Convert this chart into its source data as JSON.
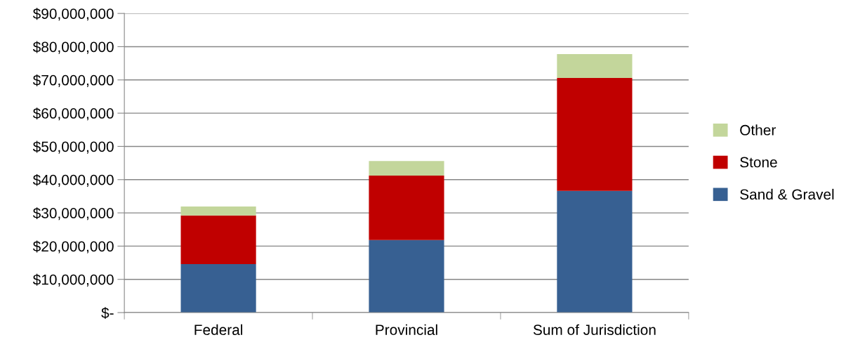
{
  "chart_data": {
    "type": "bar",
    "stacked": true,
    "categories": [
      "Federal",
      "Provincial",
      "Sum of Jurisdiction"
    ],
    "series": [
      {
        "name": "Sand & Gravel",
        "color": "#376092",
        "values": [
          14600000,
          21800000,
          36600000
        ]
      },
      {
        "name": "Stone",
        "color": "#c00000",
        "values": [
          14600000,
          19400000,
          34000000
        ]
      },
      {
        "name": "Other",
        "color": "#c3d69b",
        "values": [
          2700000,
          4400000,
          7200000
        ]
      }
    ],
    "ylim": [
      0,
      90000000
    ],
    "yticks": [
      {
        "value": 0,
        "label": "$-"
      },
      {
        "value": 10000000,
        "label": "$10,000,000"
      },
      {
        "value": 20000000,
        "label": "$20,000,000"
      },
      {
        "value": 30000000,
        "label": "$30,000,000"
      },
      {
        "value": 40000000,
        "label": "$40,000,000"
      },
      {
        "value": 50000000,
        "label": "$50,000,000"
      },
      {
        "value": 60000000,
        "label": "$60,000,000"
      },
      {
        "value": 70000000,
        "label": "$70,000,000"
      },
      {
        "value": 80000000,
        "label": "$80,000,000"
      },
      {
        "value": 90000000,
        "label": "$90,000,000"
      }
    ],
    "grid": "y",
    "legend": "right"
  }
}
